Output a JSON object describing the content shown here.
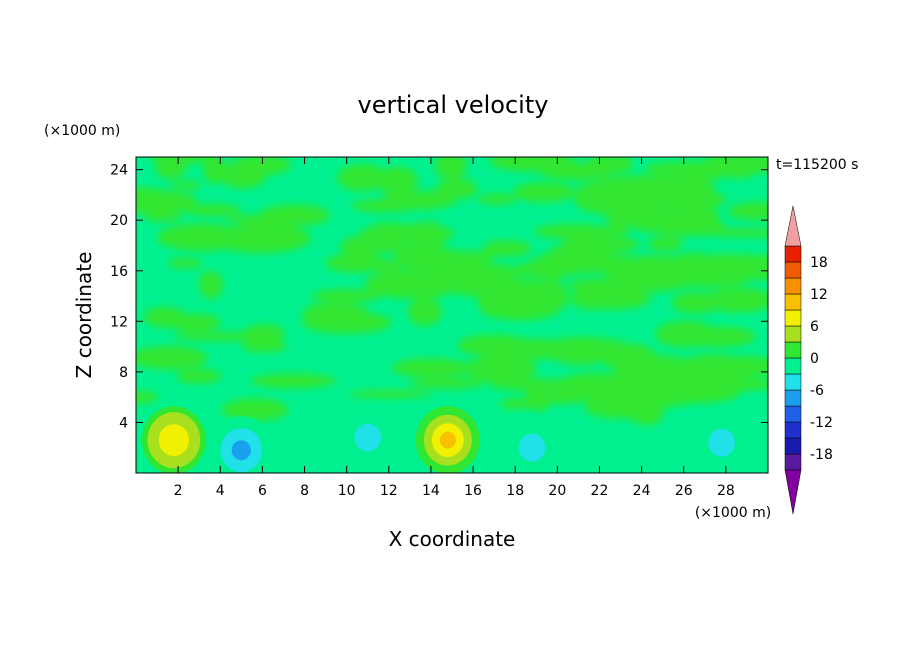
{
  "chart_data": {
    "type": "heatmap",
    "title": "vertical velocity",
    "time_label": "t=115200 s",
    "xlabel": "X coordinate",
    "ylabel": "Z coordinate",
    "x_unit_label": "(×1000 m)",
    "y_unit_label": "(×1000 m)",
    "xlim": [
      0,
      30
    ],
    "ylim": [
      0,
      25
    ],
    "x_ticks": [
      2,
      4,
      6,
      8,
      10,
      12,
      14,
      16,
      18,
      20,
      22,
      24,
      26,
      28
    ],
    "y_ticks": [
      4,
      8,
      12,
      16,
      20,
      24
    ],
    "colorbar": {
      "levels": [
        -21,
        -18,
        -15,
        -12,
        -9,
        -6,
        -3,
        0,
        3,
        6,
        9,
        12,
        15,
        18,
        21
      ],
      "tick_labels": [
        18,
        12,
        6,
        0,
        -6,
        -12,
        -18
      ],
      "colors": [
        "#5a1aa0",
        "#1a1ab0",
        "#2030d0",
        "#2060e8",
        "#1aa0ee",
        "#20e0e8",
        "#00f090",
        "#30e630",
        "#a8e020",
        "#f0f000",
        "#f8c000",
        "#f89000",
        "#f05a00",
        "#e82000"
      ],
      "under_color": "#8000a0",
      "over_color": "#f0a0a0"
    },
    "features": [
      {
        "x": 1.8,
        "z": 2.6,
        "w": 1.1
      },
      {
        "x": 14.8,
        "z": 2.6,
        "w": 1.4
      },
      {
        "x": 5.0,
        "z": 1.8,
        "w": -0.9
      },
      {
        "x": 11.0,
        "z": 2.8,
        "w": -0.6
      },
      {
        "x": 18.8,
        "z": 2.0,
        "w": -0.6
      },
      {
        "x": 27.8,
        "z": 2.4,
        "w": -0.5
      }
    ]
  }
}
